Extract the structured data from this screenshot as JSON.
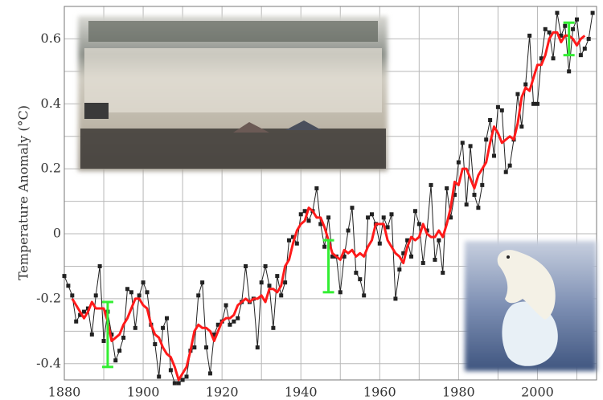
{
  "chart_data": {
    "type": "line",
    "y_label": "Temperature Anomaly (°C)",
    "xlim": [
      1880,
      2015
    ],
    "ylim": [
      -0.45,
      0.7
    ],
    "xticks": [
      1880,
      1900,
      1920,
      1940,
      1960,
      1980,
      2000
    ],
    "xticks_minor": [
      1890,
      1910,
      1930,
      1950,
      1970,
      1990,
      2010
    ],
    "yticks": [
      -0.4,
      -0.2,
      0,
      0.2,
      0.4,
      0.6
    ],
    "yticks_minor": [
      -0.3,
      -0.1,
      0.1,
      0.3,
      0.5
    ],
    "grid": true,
    "x": [
      1880,
      1881,
      1882,
      1883,
      1884,
      1885,
      1886,
      1887,
      1888,
      1889,
      1890,
      1891,
      1892,
      1893,
      1894,
      1895,
      1896,
      1897,
      1898,
      1899,
      1900,
      1901,
      1902,
      1903,
      1904,
      1905,
      1906,
      1907,
      1908,
      1909,
      1910,
      1911,
      1912,
      1913,
      1914,
      1915,
      1916,
      1917,
      1918,
      1919,
      1920,
      1921,
      1922,
      1923,
      1924,
      1925,
      1926,
      1927,
      1928,
      1929,
      1930,
      1931,
      1932,
      1933,
      1934,
      1935,
      1936,
      1937,
      1938,
      1939,
      1940,
      1941,
      1942,
      1943,
      1944,
      1945,
      1946,
      1947,
      1948,
      1949,
      1950,
      1951,
      1952,
      1953,
      1954,
      1955,
      1956,
      1957,
      1958,
      1959,
      1960,
      1961,
      1962,
      1963,
      1964,
      1965,
      1966,
      1967,
      1968,
      1969,
      1970,
      1971,
      1972,
      1973,
      1974,
      1975,
      1976,
      1977,
      1978,
      1979,
      1980,
      1981,
      1982,
      1983,
      1984,
      1985,
      1986,
      1987,
      1988,
      1989,
      1990,
      1991,
      1992,
      1993,
      1994,
      1995,
      1996,
      1997,
      1998,
      1999,
      2000,
      2001,
      2002,
      2003,
      2004,
      2005,
      2006,
      2007,
      2008,
      2009,
      2010,
      2011,
      2012,
      2013,
      2014
    ],
    "series": [
      {
        "color": "#222222",
        "markers": true,
        "values": [
          -0.13,
          -0.16,
          -0.19,
          -0.27,
          -0.25,
          -0.24,
          -0.23,
          -0.31,
          -0.19,
          -0.1,
          -0.33,
          -0.24,
          -0.31,
          -0.39,
          -0.36,
          -0.32,
          -0.17,
          -0.18,
          -0.29,
          -0.19,
          -0.15,
          -0.18,
          -0.28,
          -0.34,
          -0.44,
          -0.29,
          -0.26,
          -0.42,
          -0.46,
          -0.46,
          -0.45,
          -0.44,
          -0.36,
          -0.35,
          -0.19,
          -0.15,
          -0.35,
          -0.43,
          -0.31,
          -0.28,
          -0.27,
          -0.22,
          -0.28,
          -0.27,
          -0.26,
          -0.21,
          -0.1,
          -0.21,
          -0.2,
          -0.35,
          -0.15,
          -0.1,
          -0.16,
          -0.29,
          -0.13,
          -0.19,
          -0.15,
          -0.02,
          -0.01,
          -0.03,
          0.06,
          0.07,
          0.04,
          0.07,
          0.14,
          0.03,
          -0.04,
          0.05,
          -0.07,
          -0.07,
          -0.18,
          -0.07,
          0.01,
          0.08,
          -0.12,
          -0.14,
          -0.19,
          0.05,
          0.06,
          0.03,
          -0.03,
          0.05,
          0.02,
          0.06,
          -0.2,
          -0.11,
          -0.06,
          -0.02,
          -0.07,
          0.07,
          0.03,
          -0.09,
          0.01,
          0.15,
          -0.08,
          -0.02,
          -0.12,
          0.14,
          0.05,
          0.12,
          0.22,
          0.28,
          0.09,
          0.27,
          0.12,
          0.08,
          0.15,
          0.29,
          0.35,
          0.24,
          0.39,
          0.38,
          0.19,
          0.21,
          0.29,
          0.43,
          0.33,
          0.46,
          0.61,
          0.4,
          0.4,
          0.54,
          0.63,
          0.62,
          0.54,
          0.68,
          0.61,
          0.64,
          0.5,
          0.63,
          0.66,
          0.55,
          0.57,
          0.6,
          0.68
        ]
      },
      {
        "color": "#ff1a1a",
        "markers": false,
        "values": [
          null,
          null,
          -0.2,
          -0.22,
          -0.24,
          -0.26,
          -0.24,
          -0.21,
          -0.23,
          -0.23,
          -0.23,
          -0.27,
          -0.33,
          -0.32,
          -0.31,
          -0.28,
          -0.26,
          -0.23,
          -0.2,
          -0.2,
          -0.22,
          -0.23,
          -0.28,
          -0.31,
          -0.32,
          -0.35,
          -0.37,
          -0.38,
          -0.41,
          -0.45,
          -0.43,
          -0.41,
          -0.36,
          -0.3,
          -0.28,
          -0.29,
          -0.29,
          -0.3,
          -0.33,
          -0.3,
          -0.27,
          -0.26,
          -0.26,
          -0.25,
          -0.22,
          -0.21,
          -0.2,
          -0.21,
          -0.2,
          -0.2,
          -0.19,
          -0.21,
          -0.17,
          -0.17,
          -0.18,
          -0.16,
          -0.1,
          -0.08,
          -0.03,
          0.01,
          0.03,
          0.04,
          0.08,
          0.07,
          0.05,
          0.05,
          0.02,
          -0.02,
          -0.06,
          -0.07,
          -0.08,
          -0.05,
          -0.06,
          -0.05,
          -0.07,
          -0.06,
          -0.07,
          -0.04,
          -0.02,
          0.03,
          0.03,
          0.03,
          -0.02,
          -0.04,
          -0.06,
          -0.07,
          -0.09,
          -0.04,
          -0.01,
          -0.02,
          -0.01,
          0.03,
          0.0,
          -0.01,
          -0.01,
          0.01,
          -0.01,
          0.03,
          0.08,
          0.16,
          0.15,
          0.2,
          0.2,
          0.17,
          0.14,
          0.18,
          0.2,
          0.22,
          0.28,
          0.33,
          0.31,
          0.28,
          0.29,
          0.3,
          0.29,
          0.34,
          0.42,
          0.45,
          0.44,
          0.48,
          0.52,
          0.52,
          0.55,
          0.6,
          0.62,
          0.62,
          0.59,
          0.61,
          0.61,
          0.6,
          0.58,
          0.6,
          0.61,
          null,
          null
        ]
      }
    ],
    "uncertainty": {
      "color": "#33ee33",
      "x": [
        1891,
        1947,
        2008
      ],
      "values": [
        -0.31,
        -0.1,
        0.6
      ],
      "errors": [
        0.1,
        0.08,
        0.05
      ]
    }
  }
}
